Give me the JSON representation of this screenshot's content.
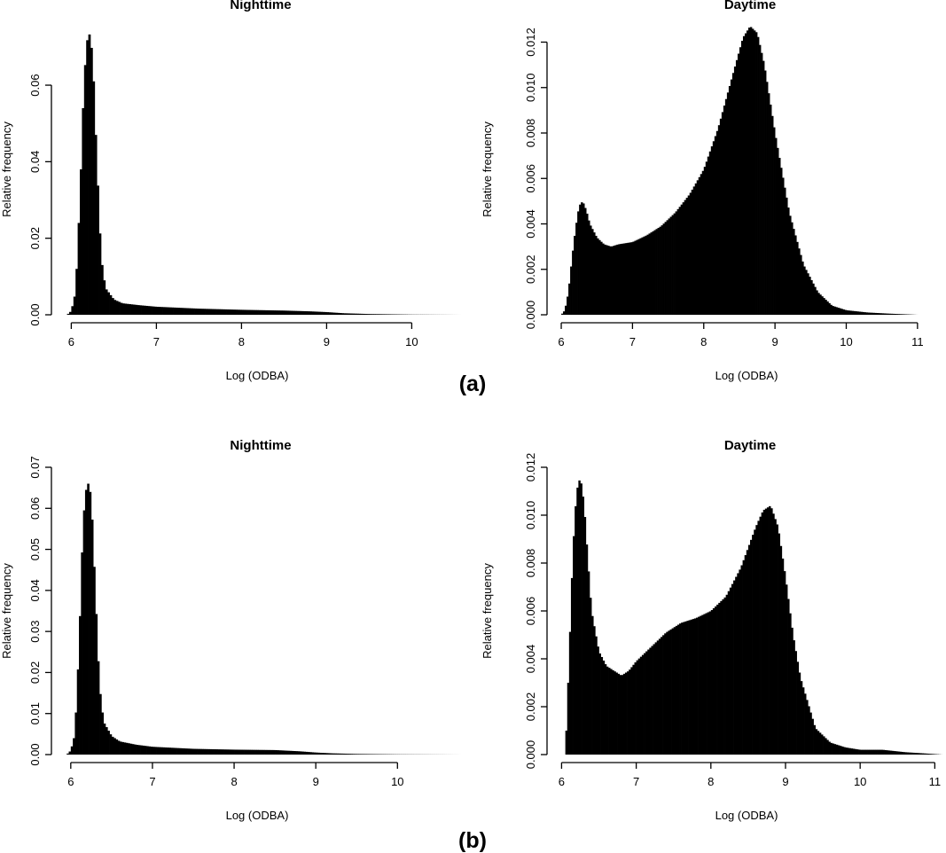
{
  "figure": {
    "panel_labels": [
      "(a)",
      "(b)"
    ]
  },
  "chart_data": [
    {
      "type": "bar",
      "subtype": "histogram",
      "panel": "(a)",
      "title": "Nighttime",
      "xlabel": "Log (ODBA)",
      "ylabel": "Relative frequency",
      "xlim": [
        5.85,
        10.6
      ],
      "ylim": [
        0,
        0.076
      ],
      "xticks": [
        6,
        7,
        8,
        9,
        10
      ],
      "xtick_labels": [
        "6",
        "7",
        "8",
        "9",
        "10"
      ],
      "yticks": [
        0,
        0.02,
        0.04,
        0.06
      ],
      "ytick_labels": [
        "0.00",
        "0.02",
        "0.04",
        "0.06"
      ],
      "color": "#000000",
      "x": [
        5.95,
        6.0,
        6.05,
        6.1,
        6.15,
        6.2,
        6.25,
        6.3,
        6.35,
        6.4,
        6.5,
        6.6,
        6.8,
        7.0,
        7.5,
        8.0,
        8.5,
        8.8,
        9.0,
        9.2,
        9.5,
        10.0,
        10.6
      ],
      "values": [
        0.0,
        0.001,
        0.006,
        0.03,
        0.062,
        0.075,
        0.068,
        0.04,
        0.015,
        0.007,
        0.004,
        0.003,
        0.0025,
        0.0021,
        0.0016,
        0.0013,
        0.0011,
        0.0009,
        0.0007,
        0.0004,
        0.0002,
        5e-05,
        0.0
      ]
    },
    {
      "type": "bar",
      "subtype": "histogram",
      "panel": "(a)",
      "title": "Daytime",
      "xlabel": "Log (ODBA)",
      "ylabel": "Relative frequency",
      "xlim": [
        5.9,
        11.4
      ],
      "ylim": [
        0,
        0.0128
      ],
      "xticks": [
        6,
        7,
        8,
        9,
        10,
        11
      ],
      "xtick_labels": [
        "6",
        "7",
        "8",
        "9",
        "10",
        "11"
      ],
      "yticks": [
        0,
        0.002,
        0.004,
        0.006,
        0.008,
        0.01,
        0.012
      ],
      "ytick_labels": [
        "0.000",
        "0.002",
        "0.004",
        "0.006",
        "0.008",
        "0.010",
        "0.012"
      ],
      "color": "#000000",
      "x": [
        6.0,
        6.05,
        6.1,
        6.15,
        6.2,
        6.25,
        6.3,
        6.35,
        6.4,
        6.5,
        6.6,
        6.7,
        6.8,
        7.0,
        7.2,
        7.4,
        7.6,
        7.8,
        8.0,
        8.2,
        8.4,
        8.55,
        8.65,
        8.75,
        8.85,
        9.0,
        9.2,
        9.4,
        9.6,
        9.8,
        10.0,
        10.3,
        10.6,
        11.0
      ],
      "values": [
        0.0,
        0.0002,
        0.001,
        0.0025,
        0.0038,
        0.0048,
        0.005,
        0.0046,
        0.004,
        0.0034,
        0.0031,
        0.003,
        0.0031,
        0.0032,
        0.0035,
        0.0039,
        0.0045,
        0.0053,
        0.0064,
        0.0082,
        0.0105,
        0.0122,
        0.0127,
        0.0124,
        0.011,
        0.008,
        0.0045,
        0.0022,
        0.001,
        0.0004,
        0.0002,
        0.0001,
        5e-05,
        0.0
      ]
    },
    {
      "type": "bar",
      "subtype": "histogram",
      "panel": "(b)",
      "title": "Nighttime",
      "xlabel": "Log (ODBA)",
      "ylabel": "Relative frequency",
      "xlim": [
        5.85,
        10.8
      ],
      "ylim": [
        0,
        0.07
      ],
      "xticks": [
        6,
        7,
        8,
        9,
        10
      ],
      "xtick_labels": [
        "6",
        "7",
        "8",
        "9",
        "10"
      ],
      "yticks": [
        0,
        0.01,
        0.02,
        0.03,
        0.04,
        0.05,
        0.06,
        0.07
      ],
      "ytick_labels": [
        "0.00",
        "0.01",
        "0.02",
        "0.03",
        "0.04",
        "0.05",
        "0.06",
        "0.07"
      ],
      "color": "#000000",
      "x": [
        5.95,
        6.0,
        6.05,
        6.1,
        6.15,
        6.2,
        6.25,
        6.3,
        6.35,
        6.4,
        6.5,
        6.6,
        6.8,
        7.0,
        7.5,
        8.0,
        8.5,
        8.8,
        9.0,
        9.2,
        9.5,
        10.0,
        10.8
      ],
      "values": [
        0.0,
        0.001,
        0.005,
        0.026,
        0.057,
        0.067,
        0.063,
        0.04,
        0.017,
        0.008,
        0.0045,
        0.0032,
        0.0024,
        0.0019,
        0.0014,
        0.0012,
        0.0011,
        0.0008,
        0.0005,
        0.0003,
        0.00015,
        5e-05,
        0.0
      ]
    },
    {
      "type": "bar",
      "subtype": "histogram",
      "panel": "(b)",
      "title": "Daytime",
      "xlabel": "Log (ODBA)",
      "ylabel": "Relative frequency",
      "xlim": [
        5.9,
        11.15
      ],
      "ylim": [
        0,
        0.012
      ],
      "xticks": [
        6,
        7,
        8,
        9,
        10,
        11
      ],
      "xtick_labels": [
        "6",
        "7",
        "8",
        "9",
        "10",
        "11"
      ],
      "yticks": [
        0,
        0.002,
        0.004,
        0.006,
        0.008,
        0.01,
        0.012
      ],
      "ytick_labels": [
        "0.000",
        "0.002",
        "0.004",
        "0.006",
        "0.008",
        "0.010",
        "0.012"
      ],
      "color": "#000000",
      "x": [
        6.05,
        6.1,
        6.15,
        6.2,
        6.25,
        6.3,
        6.35,
        6.4,
        6.5,
        6.6,
        6.7,
        6.8,
        6.9,
        7.0,
        7.2,
        7.4,
        7.6,
        7.8,
        8.0,
        8.2,
        8.4,
        8.6,
        8.7,
        8.8,
        8.9,
        9.0,
        9.1,
        9.2,
        9.4,
        9.6,
        9.8,
        10.0,
        10.3,
        10.6,
        11.1
      ],
      "values": [
        0.0,
        0.004,
        0.0085,
        0.011,
        0.0116,
        0.0105,
        0.0082,
        0.006,
        0.0043,
        0.0037,
        0.0035,
        0.0033,
        0.0035,
        0.0039,
        0.0045,
        0.0051,
        0.0055,
        0.0057,
        0.006,
        0.0066,
        0.0078,
        0.0095,
        0.0102,
        0.0104,
        0.0095,
        0.0074,
        0.005,
        0.0032,
        0.0011,
        0.0005,
        0.0003,
        0.0002,
        0.0002,
        0.0001,
        0.0
      ]
    }
  ]
}
